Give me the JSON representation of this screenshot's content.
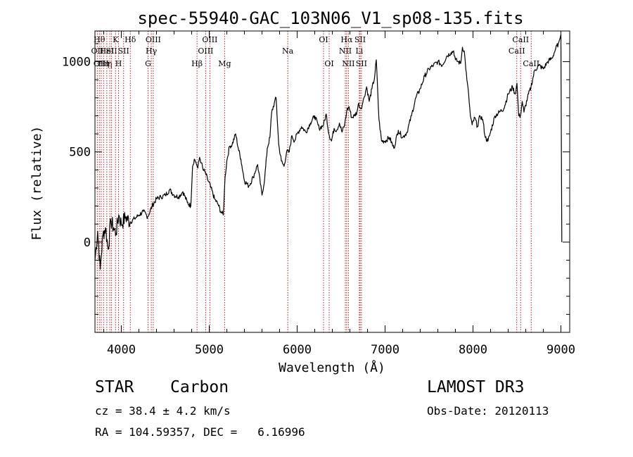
{
  "chart_data": {
    "type": "line",
    "title": "spec-55940-GAC_103N06_V1_sp08-135.fits",
    "xlabel": "Wavelength (Å)",
    "ylabel": "Flux (relative)",
    "xlim": [
      3700,
      9100
    ],
    "ylim": [
      -500,
      1170
    ],
    "x_ticks": [
      4000,
      5000,
      6000,
      7000,
      8000,
      9000
    ],
    "y_ticks": [
      0,
      500,
      1000
    ],
    "grid": false,
    "series": [
      {
        "name": "flux",
        "x": [
          3700,
          3730,
          3760,
          3790,
          3820,
          3850,
          3880,
          3910,
          3940,
          3970,
          4000,
          4050,
          4100,
          4150,
          4200,
          4250,
          4300,
          4350,
          4400,
          4450,
          4500,
          4550,
          4600,
          4650,
          4700,
          4750,
          4790,
          4810,
          4830,
          4850,
          4870,
          4890,
          4910,
          4930,
          4950,
          4980,
          5020,
          5060,
          5100,
          5130,
          5160,
          5180,
          5200,
          5230,
          5260,
          5300,
          5330,
          5360,
          5400,
          5450,
          5500,
          5550,
          5600,
          5630,
          5660,
          5690,
          5710,
          5740,
          5760,
          5790,
          5820,
          5850,
          5880,
          5910,
          5940,
          5970,
          6000,
          6050,
          6100,
          6150,
          6200,
          6250,
          6300,
          6330,
          6360,
          6390,
          6420,
          6450,
          6480,
          6510,
          6540,
          6565,
          6590,
          6620,
          6650,
          6680,
          6700,
          6720,
          6740,
          6760,
          6790,
          6820,
          6850,
          6880,
          6900,
          6930,
          6960,
          7000,
          7050,
          7100,
          7150,
          7200,
          7250,
          7300,
          7350,
          7400,
          7450,
          7500,
          7550,
          7600,
          7650,
          7700,
          7750,
          7780,
          7800,
          7830,
          7860,
          7880,
          7900,
          7930,
          7950,
          7970,
          7990,
          8020,
          8050,
          8080,
          8110,
          8140,
          8170,
          8200,
          8250,
          8300,
          8350,
          8400,
          8450,
          8480,
          8500,
          8520,
          8540,
          8560,
          8580,
          8620,
          8660,
          8700,
          8750,
          8800,
          8850,
          8900,
          8940,
          8970,
          8990,
          9000,
          9010
        ],
        "y": [
          -100,
          60,
          -150,
          40,
          80,
          -40,
          120,
          80,
          50,
          150,
          100,
          140,
          110,
          130,
          150,
          170,
          140,
          200,
          240,
          250,
          260,
          290,
          260,
          250,
          280,
          220,
          200,
          420,
          460,
          440,
          410,
          470,
          440,
          400,
          390,
          350,
          300,
          240,
          210,
          170,
          150,
          360,
          450,
          530,
          540,
          600,
          520,
          460,
          340,
          310,
          360,
          430,
          260,
          350,
          520,
          580,
          720,
          770,
          800,
          540,
          450,
          420,
          500,
          500,
          590,
          560,
          600,
          640,
          610,
          660,
          700,
          630,
          650,
          710,
          600,
          560,
          630,
          620,
          660,
          610,
          650,
          730,
          750,
          690,
          700,
          720,
          770,
          740,
          760,
          800,
          860,
          780,
          850,
          910,
          1010,
          680,
          560,
          560,
          580,
          520,
          620,
          580,
          610,
          700,
          800,
          850,
          920,
          960,
          980,
          1000,
          980,
          1030,
          1050,
          1060,
          1010,
          1000,
          990,
          1080,
          1060,
          900,
          820,
          700,
          650,
          690,
          640,
          700,
          680,
          580,
          560,
          610,
          700,
          720,
          740,
          820,
          860,
          820,
          880,
          700,
          700,
          780,
          720,
          800,
          860,
          950,
          980,
          960,
          1000,
          1020,
          1070,
          1100,
          1130,
          1150,
          0
        ]
      }
    ],
    "line_markers": [
      {
        "wavelength": 3727,
        "label": "OII",
        "row": 1
      },
      {
        "wavelength": 3750,
        "label": "Hθ",
        "row": 0
      },
      {
        "wavelength": 3771,
        "label": "OIII",
        "row": 2
      },
      {
        "wavelength": 3798,
        "label": "Hη",
        "row": 2
      },
      {
        "wavelength": 3835,
        "label": "HeI",
        "row": 1
      },
      {
        "wavelength": 3869,
        "label": "η",
        "row": 2
      },
      {
        "wavelength": 3889,
        "label": "SII",
        "row": 1
      },
      {
        "wavelength": 3934,
        "label": "K",
        "row": 0
      },
      {
        "wavelength": 3968,
        "label": "H",
        "row": 2
      },
      {
        "wavelength": 4026,
        "label": "SII",
        "row": 1
      },
      {
        "wavelength": 4102,
        "label": "Hδ",
        "row": 0
      },
      {
        "wavelength": 4304,
        "label": "G",
        "row": 2
      },
      {
        "wavelength": 4341,
        "label": "Hγ",
        "row": 1
      },
      {
        "wavelength": 4363,
        "label": "OIII",
        "row": 0
      },
      {
        "wavelength": 4861,
        "label": "Hβ",
        "row": 2
      },
      {
        "wavelength": 4959,
        "label": "OIII",
        "row": 1
      },
      {
        "wavelength": 5007,
        "label": "OIII",
        "row": 0
      },
      {
        "wavelength": 5175,
        "label": "Mg",
        "row": 2
      },
      {
        "wavelength": 5893,
        "label": "Na",
        "row": 1
      },
      {
        "wavelength": 6300,
        "label": "OI",
        "row": 0
      },
      {
        "wavelength": 6364,
        "label": "OI",
        "row": 2
      },
      {
        "wavelength": 6548,
        "label": "NII",
        "row": 1
      },
      {
        "wavelength": 6563,
        "label": "Hα",
        "row": 0
      },
      {
        "wavelength": 6583,
        "label": "NII",
        "row": 2
      },
      {
        "wavelength": 6707,
        "label": "Li",
        "row": 1
      },
      {
        "wavelength": 6716,
        "label": "SII",
        "row": 0
      },
      {
        "wavelength": 6731,
        "label": "SII",
        "row": 2
      },
      {
        "wavelength": 8498,
        "label": "CaII",
        "row": 1
      },
      {
        "wavelength": 8542,
        "label": "CaII",
        "row": 0
      },
      {
        "wavelength": 8662,
        "label": "CaII",
        "row": 2
      }
    ]
  },
  "info": {
    "class": "STAR",
    "subclass": "Carbon",
    "survey": "LAMOST DR3",
    "redshift": "cz = 38.4 ± 4.2 km/s",
    "obs_date": "Obs-Date: 20120113",
    "coords": "RA = 104.59357, DEC =   6.16996"
  },
  "colors": {
    "line": "#000000",
    "marker": "#b22222",
    "axis": "#000000"
  }
}
